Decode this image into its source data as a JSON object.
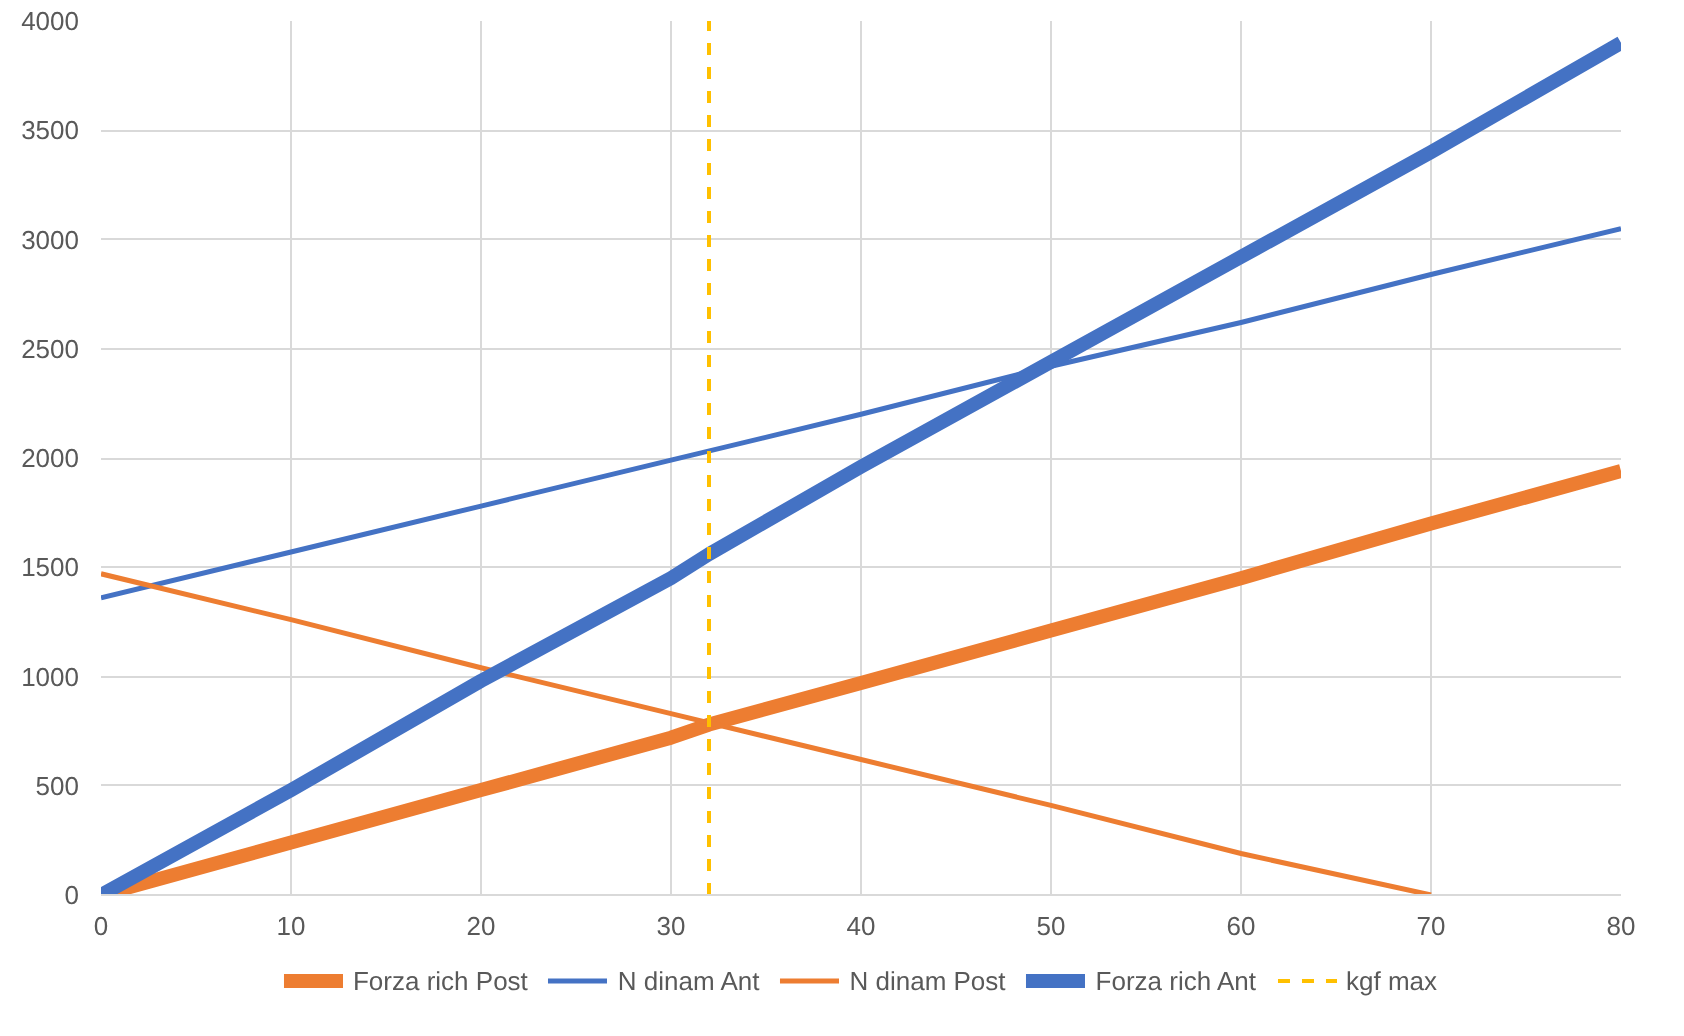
{
  "chart_data": {
    "type": "line",
    "xlim": [
      0,
      80
    ],
    "xticks": [
      0,
      10,
      20,
      30,
      40,
      50,
      60,
      70,
      80
    ],
    "ylim": [
      0,
      4000
    ],
    "yticks": [
      0,
      500,
      1000,
      1500,
      2000,
      2500,
      3000,
      3500,
      4000
    ],
    "grid": true,
    "legend": "bottom",
    "series": [
      {
        "name": "Forza rich Post",
        "color": "#ed7d31",
        "x": [
          0,
          10,
          20,
          30,
          32,
          40,
          50,
          60,
          70,
          80
        ],
        "values": [
          0,
          240,
          480,
          720,
          780,
          970,
          1210,
          1450,
          1700,
          1940
        ]
      },
      {
        "name": "N dinam Ant",
        "color": "#4472c4",
        "x": [
          0,
          10,
          20,
          30,
          40,
          50,
          60,
          70,
          80
        ],
        "values": [
          1360,
          1570,
          1780,
          1990,
          2200,
          2420,
          2620,
          2840,
          3050
        ]
      },
      {
        "name": "N dinam Post",
        "color": "#ed7d31",
        "x": [
          0,
          10,
          20,
          30,
          40,
          50,
          60,
          70
        ],
        "values": [
          1470,
          1260,
          1040,
          830,
          620,
          410,
          190,
          0
        ]
      },
      {
        "name": "Forza rich Ant",
        "color": "#4472c4",
        "x": [
          0,
          10,
          20,
          30,
          32,
          40,
          50,
          60,
          70,
          80
        ],
        "values": [
          0,
          480,
          980,
          1450,
          1560,
          1960,
          2440,
          2920,
          3400,
          3900
        ]
      }
    ],
    "ref_lines": [
      {
        "axis": "x",
        "value": 32,
        "label": "kgf max",
        "color": "#ffc000",
        "line_style": "dashed"
      }
    ]
  }
}
